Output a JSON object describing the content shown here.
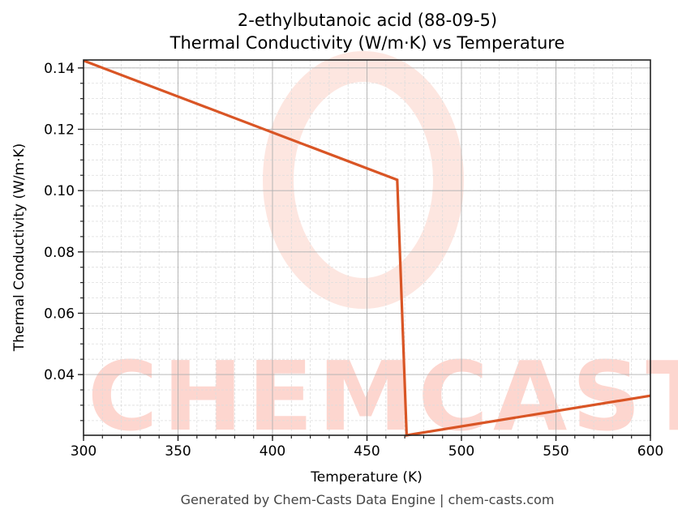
{
  "title": {
    "line1": "2-ethylbutanoic acid (88-09-5)",
    "line2": "Thermal Conductivity (W/m·K) vs Temperature"
  },
  "footer": "Generated by Chem-Casts Data Engine | chem-casts.com",
  "watermark": "CHEMCASTS",
  "colors": {
    "line": "#d95525",
    "watermark": "#fdd6cf",
    "grid_major": "#b0b0b0",
    "grid_minor": "#dddddd"
  },
  "chart_data": {
    "type": "line",
    "title": "2-ethylbutanoic acid (88-09-5)\nThermal Conductivity (W/m·K) vs Temperature",
    "xlabel": "Temperature (K)",
    "ylabel": "Thermal Conductivity (W/m·K)",
    "xlim": [
      300,
      600
    ],
    "ylim": [
      0.0202,
      0.1426
    ],
    "xticks": [
      300,
      350,
      400,
      450,
      500,
      550,
      600
    ],
    "xtick_labels": [
      "300",
      "350",
      "400",
      "450",
      "500",
      "550",
      "600"
    ],
    "yticks": [
      0.04,
      0.06,
      0.08,
      0.1,
      0.12,
      0.14
    ],
    "ytick_labels": [
      "0.04",
      "0.06",
      "0.08",
      "0.10",
      "0.12",
      "0.14"
    ],
    "grid": true,
    "minor_grid": true,
    "legend": null,
    "series": [
      {
        "name": "Thermal Conductivity",
        "x": [
          300,
          466,
          471,
          600
        ],
        "y": [
          0.1424,
          0.1035,
          0.0202,
          0.0331
        ]
      }
    ]
  }
}
